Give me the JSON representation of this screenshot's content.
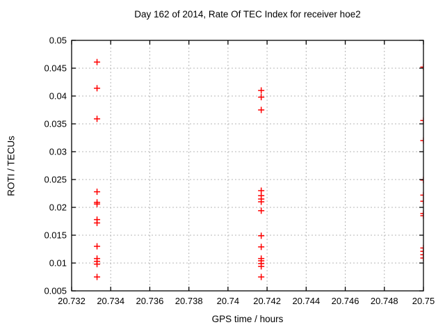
{
  "title": "Day 162 of 2014, Rate Of TEC Index for receiver hoe2",
  "chart_data": {
    "type": "scatter",
    "title": "Day 162 of 2014, Rate Of TEC Index for receiver hoe2",
    "xlabel": "GPS time / hours",
    "ylabel": "ROTI / TECUs",
    "xlim": [
      20.732,
      20.75
    ],
    "ylim": [
      0.005,
      0.05
    ],
    "xticks": [
      20.732,
      20.734,
      20.736,
      20.738,
      20.74,
      20.742,
      20.744,
      20.746,
      20.748,
      20.75
    ],
    "xtick_labels": [
      "20.732",
      "20.734",
      "20.736",
      "20.738",
      "20.74",
      "20.742",
      "20.744",
      "20.746",
      "20.748",
      "20.75"
    ],
    "yticks": [
      0.005,
      0.01,
      0.015,
      0.02,
      0.025,
      0.03,
      0.035,
      0.04,
      0.045,
      0.05
    ],
    "ytick_labels": [
      "0.005",
      "0.01",
      "0.015",
      "0.02",
      "0.025",
      "0.03",
      "0.035",
      "0.04",
      "0.045",
      "0.05"
    ],
    "grid": true,
    "legend": "none",
    "marker": {
      "shape": "plus",
      "size": 9
    },
    "colors": {
      "marker": "#ff0000",
      "grid": "#b5b5b5",
      "axis": "#000000",
      "background": "#ffffff"
    },
    "series": [
      {
        "name": "ROTI",
        "points": [
          [
            20.7333,
            0.0461
          ],
          [
            20.7333,
            0.0414
          ],
          [
            20.7333,
            0.0359
          ],
          [
            20.7333,
            0.0228
          ],
          [
            20.7333,
            0.0209
          ],
          [
            20.7333,
            0.0206
          ],
          [
            20.7333,
            0.0178
          ],
          [
            20.7333,
            0.0172
          ],
          [
            20.7333,
            0.013
          ],
          [
            20.7333,
            0.0108
          ],
          [
            20.7333,
            0.0103
          ],
          [
            20.7333,
            0.0098
          ],
          [
            20.7333,
            0.0075
          ],
          [
            20.7417,
            0.041
          ],
          [
            20.7417,
            0.0398
          ],
          [
            20.7417,
            0.0375
          ],
          [
            20.7417,
            0.023
          ],
          [
            20.7417,
            0.0221
          ],
          [
            20.7417,
            0.0215
          ],
          [
            20.7417,
            0.021
          ],
          [
            20.7417,
            0.0194
          ],
          [
            20.7417,
            0.0149
          ],
          [
            20.7417,
            0.0129
          ],
          [
            20.7417,
            0.0108
          ],
          [
            20.7417,
            0.0104
          ],
          [
            20.7417,
            0.0099
          ],
          [
            20.7417,
            0.0094
          ],
          [
            20.7417,
            0.0075
          ],
          [
            20.75,
            0.0452
          ],
          [
            20.75,
            0.0356
          ],
          [
            20.75,
            0.032
          ],
          [
            20.75,
            0.0249
          ],
          [
            20.75,
            0.0222
          ],
          [
            20.75,
            0.0211
          ],
          [
            20.75,
            0.0189
          ],
          [
            20.75,
            0.0185
          ],
          [
            20.75,
            0.0127
          ],
          [
            20.75,
            0.0121
          ],
          [
            20.75,
            0.0115
          ],
          [
            20.75,
            0.0109
          ]
        ]
      }
    ]
  }
}
